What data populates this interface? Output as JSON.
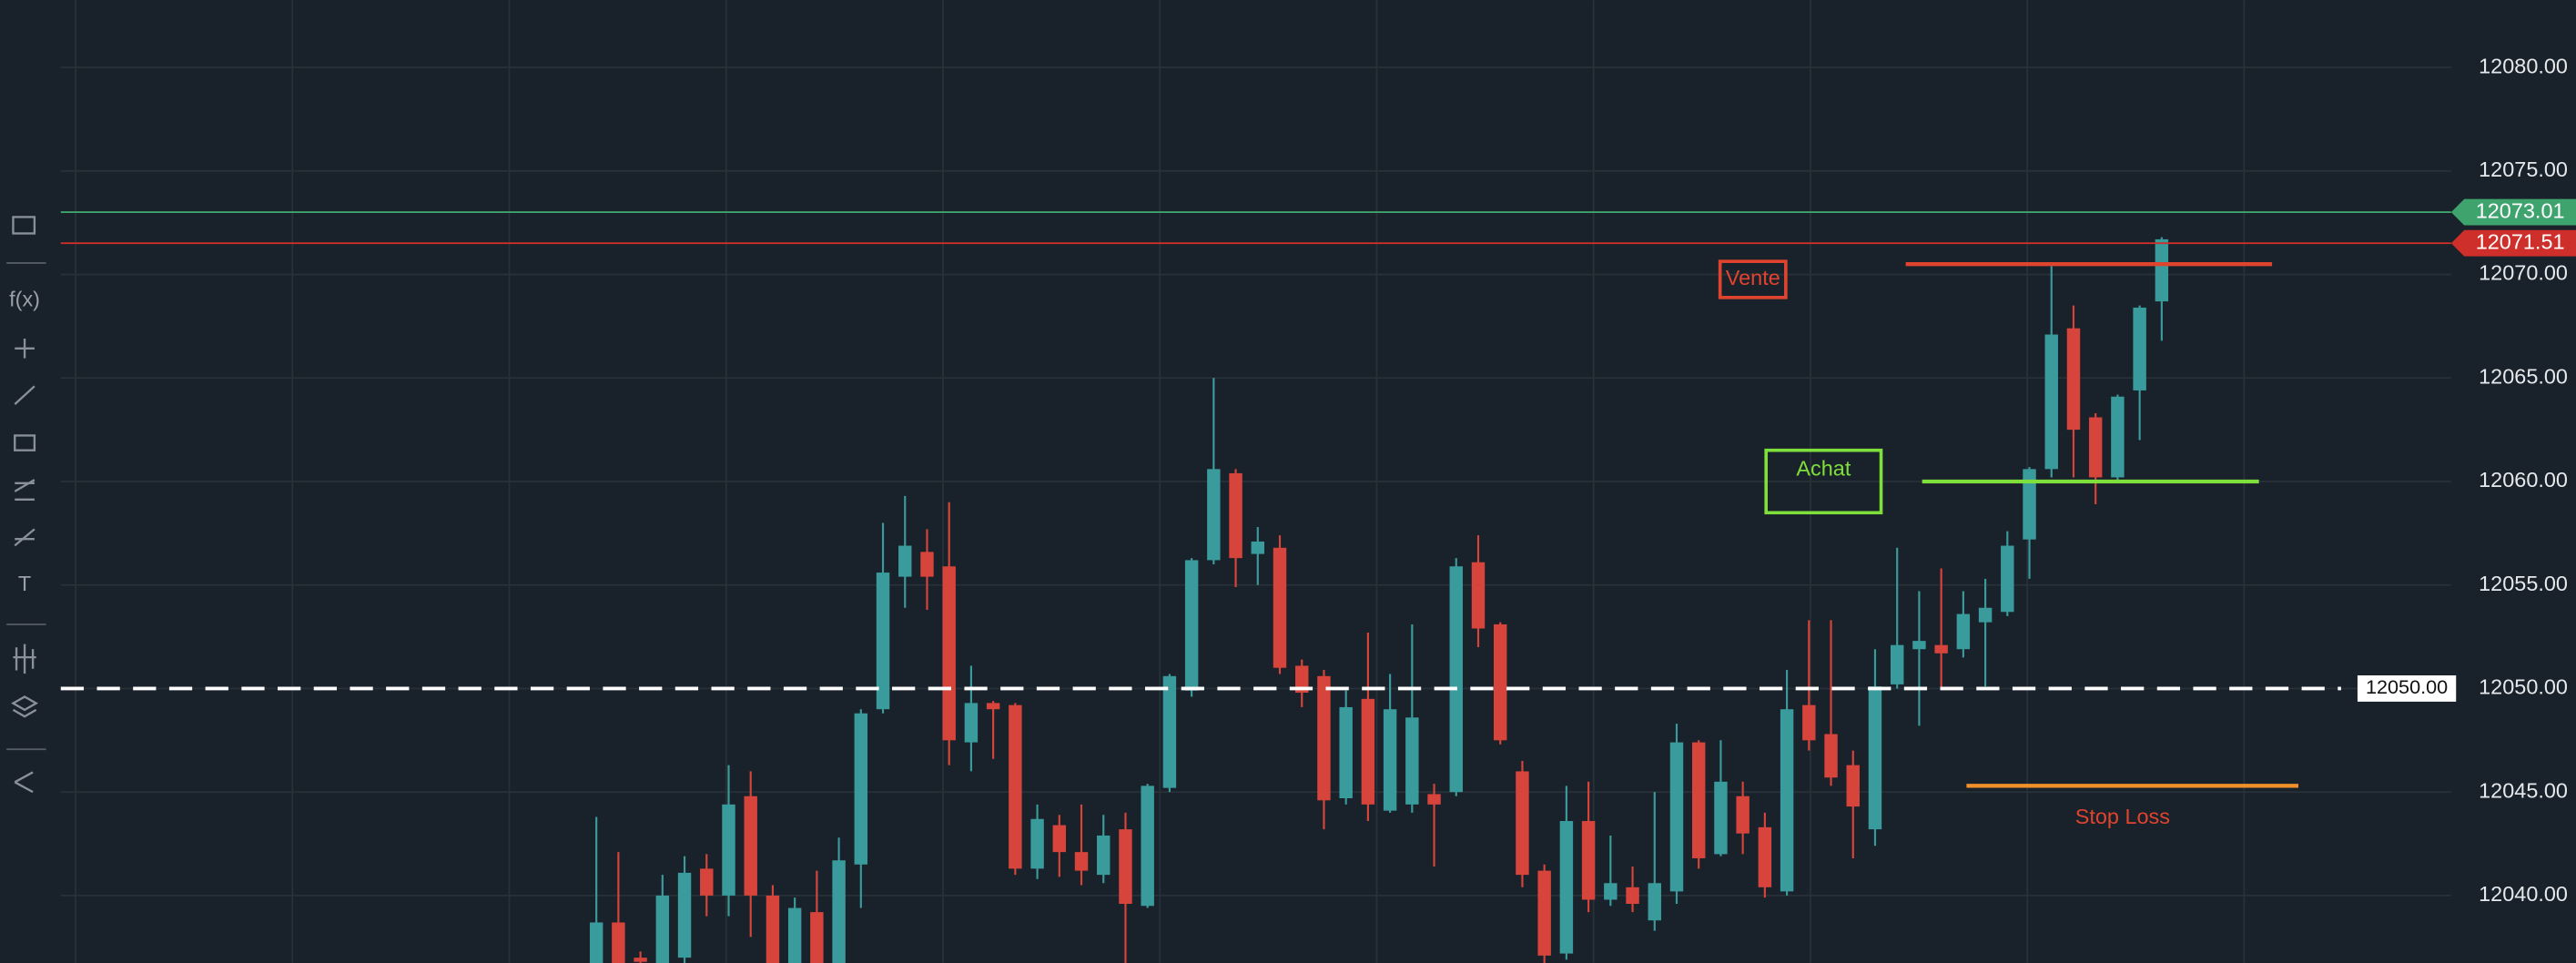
{
  "chart_data": {
    "type": "candlestick",
    "open": [
      12036.5,
      12038.7,
      12037,
      12036.6,
      12037,
      12041.3,
      12040,
      12044.8,
      12040,
      12036.5,
      12039.2,
      12036.5,
      12041.5,
      12049,
      12055.4,
      12056.6,
      12055.9,
      12047.4,
      12049.3,
      12049.2,
      12041.3,
      12043.4,
      12042.1,
      12041,
      12043.2,
      12039.5,
      12045.2,
      12049.9,
      12056.2,
      12060.4,
      12056.5,
      12056.8,
      12051.1,
      12050.6,
      12044.7,
      12049.5,
      12044.1,
      12044.4,
      12044.9,
      12045,
      12056.1,
      12053.1,
      12046,
      12041.2,
      12037.2,
      12043.6,
      12039.8,
      12040.4,
      12038.8,
      12040.2,
      12047.4,
      12042,
      12044.8,
      12043.3,
      12040.2,
      12049.2,
      12047.8,
      12046.3,
      12043.2,
      12050.2,
      12051.9,
      12052.1,
      12051.9,
      12053.2,
      12053.7,
      12057.2,
      12060.6,
      12067.4,
      12063.1,
      12060.2,
      12064.4,
      12068.7
    ],
    "high": [
      12043.8,
      12042.1,
      12037.3,
      12041,
      12041.9,
      12042,
      12046.3,
      12046,
      12040.5,
      12039.9,
      12041.2,
      12042.8,
      12049,
      12058,
      12059.3,
      12057.7,
      12059,
      12051.1,
      12049.4,
      12049.3,
      12044.4,
      12043.9,
      12044.4,
      12043.9,
      12044,
      12045.4,
      12050.7,
      12056.3,
      12065,
      12060.6,
      12057.8,
      12057.4,
      12051.4,
      12050.9,
      12049.9,
      12052.7,
      12050.7,
      12053.1,
      12045.4,
      12056.3,
      12057.4,
      12053.2,
      12046.5,
      12041.5,
      12045.3,
      12045.5,
      12042.9,
      12041.4,
      12045,
      12048.3,
      12047.5,
      12047.5,
      12045.5,
      12044,
      12050.9,
      12053.3,
      12053.3,
      12047,
      12051.9,
      12056.8,
      12054.7,
      12055.8,
      12054.7,
      12055.3,
      12057.6,
      12060.7,
      12070.4,
      12068.5,
      12063.3,
      12064.2,
      12068.5,
      12071.8
    ],
    "low": [
      12036,
      12036,
      12036.5,
      12036,
      12036,
      12039,
      12039,
      12038,
      12036,
      12036,
      12036,
      12036,
      12039.4,
      12048.8,
      12053.9,
      12053.8,
      12046.3,
      12046,
      12046.6,
      12041,
      12040.8,
      12040.9,
      12040.5,
      12040.6,
      12036.5,
      12039.4,
      12045,
      12049.6,
      12056,
      12054.9,
      12055,
      12050.7,
      12049.1,
      12043.2,
      12044.4,
      12043.6,
      12044,
      12044,
      12041.4,
      12044.8,
      12052,
      12047.3,
      12040.4,
      12036.5,
      12036.9,
      12039.2,
      12039.5,
      12039.2,
      12038.3,
      12039.6,
      12041.3,
      12041.9,
      12042,
      12039.9,
      12040,
      12047,
      12045.3,
      12041.8,
      12042.4,
      12050,
      12048.2,
      12050,
      12051.5,
      12050.1,
      12053.5,
      12055.3,
      12060.2,
      12060.2,
      12058.9,
      12060,
      12062,
      12066.8
    ],
    "close": [
      12038.7,
      12036.5,
      12036.8,
      12040,
      12041.1,
      12040,
      12044.4,
      12040,
      12036.5,
      12039.4,
      12036.5,
      12041.7,
      12048.8,
      12055.6,
      12056.9,
      12055.4,
      12047.5,
      12049.3,
      12049,
      12041.3,
      12043.7,
      12042.1,
      12041.2,
      12042.9,
      12039.6,
      12045.3,
      12050.6,
      12056.2,
      12060.6,
      12056.3,
      12057.1,
      12051,
      12049.8,
      12044.6,
      12049.1,
      12044.4,
      12049,
      12048.6,
      12044.4,
      12055.9,
      12052.9,
      12047.5,
      12041,
      12037.1,
      12043.6,
      12039.8,
      12040.6,
      12039.6,
      12040.6,
      12047.4,
      12041.8,
      12045.5,
      12043,
      12040.4,
      12049,
      12047.5,
      12045.7,
      12044.3,
      12050.1,
      12052.1,
      12052.3,
      12051.7,
      12053.6,
      12053.9,
      12056.9,
      12060.6,
      12067.1,
      12062.5,
      12060.2,
      12064.1,
      12068.4,
      12071.7
    ],
    "up_color": "#3a9b9c",
    "down_color": "#d6443b",
    "ylim": [
      12036.75,
      12083.25
    ],
    "yticks": [
      {
        "value": 12040,
        "label": "12040.00"
      },
      {
        "value": 12045,
        "label": "12045.00"
      },
      {
        "value": 12050,
        "label": "12050.00"
      },
      {
        "value": 12055,
        "label": "12055.00"
      },
      {
        "value": 12060,
        "label": "12060.00"
      },
      {
        "value": 12065,
        "label": "12065.00"
      },
      {
        "value": 12070,
        "label": "12070.00"
      },
      {
        "value": 12075,
        "label": "12075.00"
      },
      {
        "value": 12080,
        "label": "12080.00"
      }
    ],
    "grid": true,
    "price_lines": [
      {
        "value": 12073.01,
        "label": "12073.01",
        "color": "#3fa36e",
        "style": "solid"
      },
      {
        "value": 12071.51,
        "label": "12071.51",
        "color": "#cf2f2a",
        "style": "solid"
      },
      {
        "value": 12050,
        "label": "12050.00",
        "color": "#ffffff",
        "style": "dashed"
      }
    ],
    "levels": [
      {
        "value": 12070.5,
        "color": "#e0442f"
      },
      {
        "value": 12060,
        "color": "#7fe03c"
      },
      {
        "value": 12045.3,
        "color": "#f0902a"
      }
    ],
    "annotations": [
      {
        "text": "Vente",
        "color": "#e0442f"
      },
      {
        "text": "Achat",
        "color": "#7fe03c"
      },
      {
        "text": "Stop Loss",
        "color": "#e0442f"
      }
    ]
  },
  "toolbar": {
    "labels": [
      "f(x)",
      "T"
    ]
  }
}
